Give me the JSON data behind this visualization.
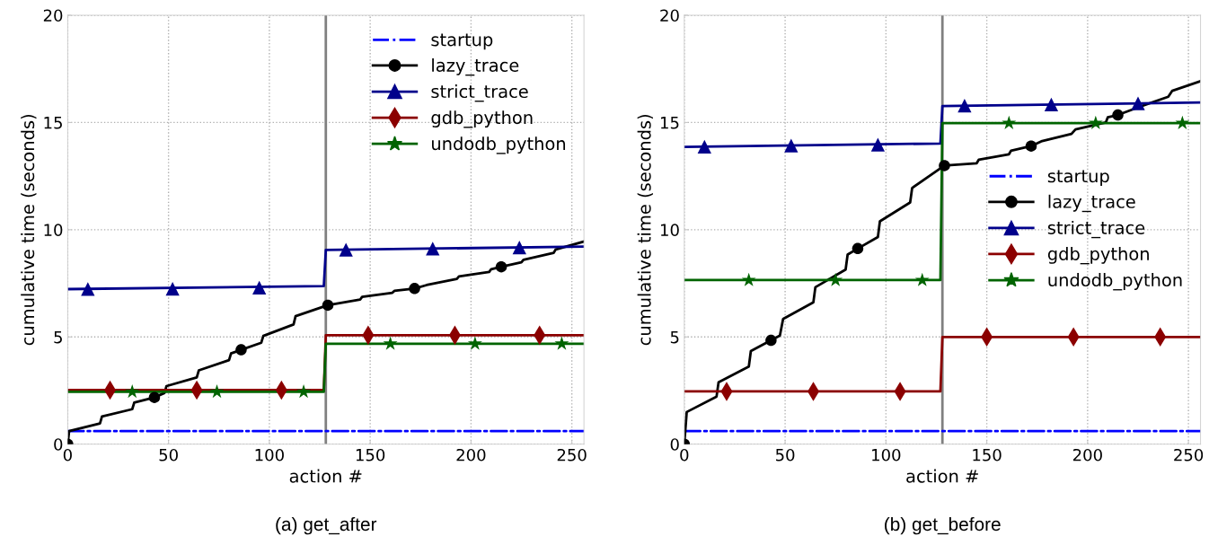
{
  "chart_data": [
    {
      "type": "line",
      "title": "(a) get_after",
      "xlabel": "action #",
      "ylabel": "cumulative time (seconds)",
      "xlim": [
        0,
        256
      ],
      "xticks": [
        0,
        50,
        100,
        150,
        200,
        250
      ],
      "ylim": [
        0,
        20
      ],
      "yticks": [
        0,
        5,
        10,
        15,
        20
      ],
      "grid": true,
      "legend": "top right",
      "ref_lines": [
        {
          "axis": "x",
          "value": 128,
          "color": "#808080"
        }
      ],
      "series": [
        {
          "name": "startup",
          "color": "#0000ff",
          "line_style": "dashdot",
          "marker": "none",
          "x": [
            0,
            256
          ],
          "values": [
            0.61,
            0.61
          ]
        },
        {
          "color": "#000000",
          "marker": "none",
          "x": [
            0,
            0.7,
            16,
            17,
            32,
            33,
            43,
            48,
            49,
            64,
            65,
            80,
            81,
            86,
            96,
            97,
            112,
            113,
            129,
            145,
            146,
            161,
            162,
            172,
            178,
            193,
            194,
            209,
            210,
            215,
            225,
            226,
            241,
            242,
            256
          ],
          "values": [
            0,
            0.61,
            0.97,
            1.29,
            1.63,
            1.94,
            2.18,
            2.39,
            2.71,
            3.11,
            3.44,
            3.92,
            4.23,
            4.4,
            4.73,
            5.05,
            5.58,
            5.97,
            6.48,
            6.74,
            6.87,
            7.06,
            7.15,
            7.26,
            7.42,
            7.71,
            7.82,
            8.03,
            8.16,
            8.27,
            8.48,
            8.6,
            8.92,
            9.08,
            9.45
          ]
        },
        {
          "color": "#00008b",
          "marker": "none",
          "x": [
            0,
            127,
            128,
            256
          ],
          "values": [
            7.23,
            7.37,
            9.06,
            9.21
          ]
        },
        {
          "color": "#8b0000",
          "marker": "none",
          "x": [
            0,
            127,
            128,
            256
          ],
          "values": [
            2.52,
            2.52,
            5.08,
            5.08
          ]
        },
        {
          "color": "#006400",
          "marker": "none",
          "x": [
            0,
            127,
            128,
            256
          ],
          "values": [
            2.44,
            2.44,
            4.68,
            4.68
          ]
        },
        {
          "type": "scatter",
          "name": "lazy_trace",
          "color": "#000000",
          "marker": "circle",
          "x": [
            0,
            43,
            86,
            129,
            172,
            215
          ],
          "values": [
            0,
            2.18,
            4.4,
            6.48,
            7.26,
            8.27
          ]
        },
        {
          "type": "scatter",
          "name": "strict_trace",
          "color": "#00008b",
          "marker": "triangle",
          "x": [
            10,
            52,
            95,
            138,
            181,
            224
          ],
          "values": [
            7.24,
            7.25,
            7.3,
            9.07,
            9.12,
            9.17
          ]
        },
        {
          "type": "scatter",
          "name": "gdb_python",
          "color": "#8b0000",
          "marker": "diamond",
          "x": [
            21,
            64,
            106,
            149,
            192,
            234
          ],
          "values": [
            2.52,
            2.52,
            2.52,
            5.08,
            5.08,
            5.08
          ]
        },
        {
          "type": "scatter",
          "name": "undodb_python",
          "color": "#006400",
          "marker": "star",
          "x": [
            32,
            74,
            117,
            160,
            202,
            245
          ],
          "values": [
            2.44,
            2.44,
            2.44,
            4.68,
            4.68,
            4.68
          ]
        }
      ]
    },
    {
      "type": "line",
      "title": "(b) get_before",
      "xlabel": "action #",
      "ylabel": "cumulative time (seconds)",
      "xlim": [
        0,
        256
      ],
      "xticks": [
        0,
        50,
        100,
        150,
        200,
        250
      ],
      "ylim": [
        0,
        20
      ],
      "yticks": [
        0,
        5,
        10,
        15,
        20
      ],
      "grid": true,
      "legend": "right",
      "ref_lines": [
        {
          "axis": "x",
          "value": 128,
          "color": "#808080"
        }
      ],
      "series": [
        {
          "name": "startup",
          "color": "#0000ff",
          "line_style": "dashdot",
          "marker": "none",
          "x": [
            0,
            256
          ],
          "values": [
            0.61,
            0.61
          ]
        },
        {
          "color": "#000000",
          "marker": "none",
          "x": [
            0,
            1.2,
            16,
            17,
            32,
            33,
            43,
            47.4,
            49,
            64,
            65,
            80,
            81,
            86,
            96,
            97,
            112,
            113,
            124.5,
            129,
            145,
            146,
            161,
            162,
            172,
            177,
            192,
            194,
            209,
            210,
            215,
            225.5,
            240,
            242,
            256
          ],
          "values": [
            0,
            1.5,
            2.22,
            2.89,
            3.62,
            4.34,
            4.84,
            5.06,
            5.84,
            6.61,
            7.32,
            8.14,
            8.84,
            9.12,
            9.66,
            10.39,
            11.27,
            11.95,
            12.7,
            12.99,
            13.1,
            13.26,
            13.52,
            13.68,
            13.9,
            14.12,
            14.47,
            14.68,
            15.0,
            15.24,
            15.35,
            15.72,
            16.2,
            16.48,
            16.93
          ]
        },
        {
          "color": "#00008b",
          "marker": "none",
          "x": [
            0,
            127,
            128,
            256
          ],
          "values": [
            13.86,
            14.02,
            15.77,
            15.93
          ]
        },
        {
          "color": "#8b0000",
          "marker": "none",
          "x": [
            0,
            127,
            128,
            256
          ],
          "values": [
            2.46,
            2.46,
            5.0,
            5.0
          ]
        },
        {
          "color": "#006400",
          "marker": "none",
          "x": [
            0,
            127,
            128,
            256
          ],
          "values": [
            7.65,
            7.65,
            14.97,
            14.97
          ]
        },
        {
          "type": "scatter",
          "name": "lazy_trace",
          "color": "#000000",
          "marker": "circle",
          "x": [
            0,
            43,
            86,
            129,
            172,
            215
          ],
          "values": [
            0,
            4.84,
            9.12,
            12.99,
            13.9,
            15.35
          ]
        },
        {
          "type": "scatter",
          "name": "strict_trace",
          "color": "#00008b",
          "marker": "triangle",
          "x": [
            10,
            53,
            96,
            139,
            182,
            225
          ],
          "values": [
            13.87,
            13.92,
            13.97,
            15.79,
            15.84,
            15.89
          ]
        },
        {
          "type": "scatter",
          "name": "gdb_python",
          "color": "#8b0000",
          "marker": "diamond",
          "x": [
            21,
            64,
            107,
            150,
            193,
            236
          ],
          "values": [
            2.46,
            2.46,
            2.46,
            5.0,
            5.0,
            5.0
          ]
        },
        {
          "type": "scatter",
          "name": "undodb_python",
          "color": "#006400",
          "marker": "star",
          "x": [
            32,
            75,
            118,
            161,
            204,
            247
          ],
          "values": [
            7.65,
            7.65,
            7.65,
            14.97,
            14.97,
            14.97
          ]
        }
      ]
    }
  ]
}
